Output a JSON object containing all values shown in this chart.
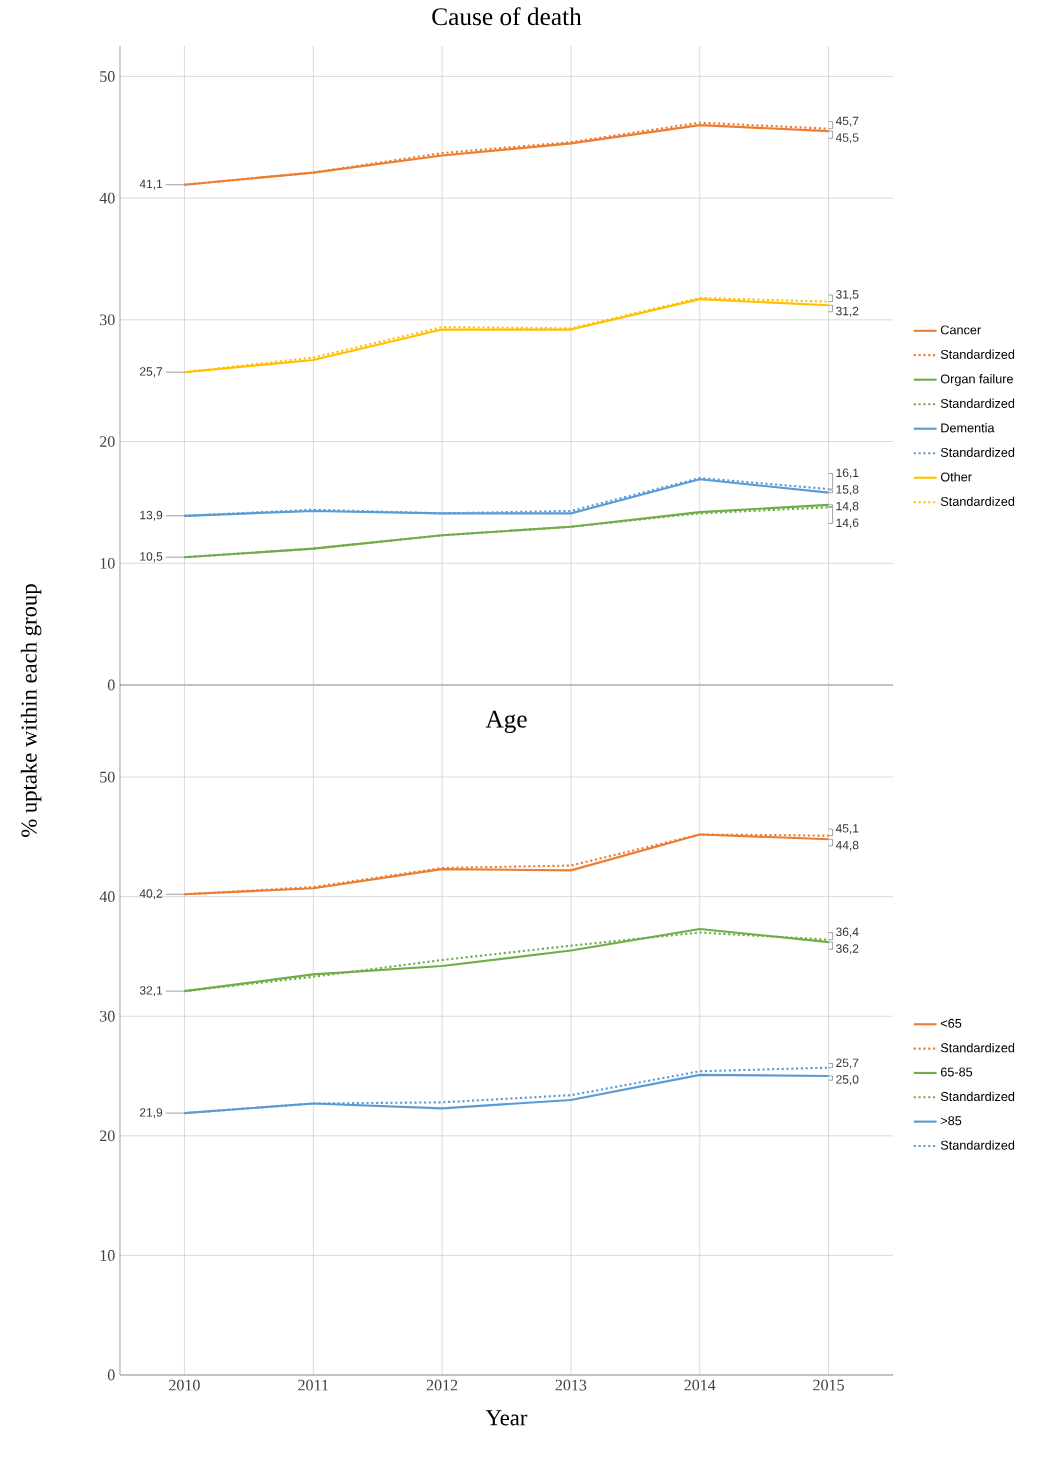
{
  "chart_data": [
    {
      "type": "line",
      "title": "Cause of death",
      "ylabel": "% uptake within each group",
      "x": [
        2010,
        2011,
        2012,
        2013,
        2014,
        2015
      ],
      "xlim": [
        2009.5,
        2015.5
      ],
      "xticks": [
        2010,
        2011,
        2012,
        2013,
        2014,
        2015
      ],
      "ylim": [
        0,
        52.5
      ],
      "yticks": [
        0,
        10,
        20,
        30,
        40,
        50
      ],
      "grid": true,
      "legend": "right",
      "tick_labels": "y",
      "series": [
        {
          "name": "Cancer",
          "color": "#ed7d31",
          "line_style": "solid",
          "values": [
            41.1,
            42.1,
            43.5,
            44.5,
            46.0,
            45.5
          ],
          "value_labels": [
            "41,1",
            null,
            null,
            null,
            null,
            "45,5"
          ]
        },
        {
          "name": "Standardized",
          "color": "#ed7d31",
          "line_style": "dotted",
          "values": [
            41.1,
            42.1,
            43.7,
            44.6,
            46.2,
            45.7
          ],
          "value_labels": [
            null,
            null,
            null,
            null,
            null,
            "45,7"
          ]
        },
        {
          "name": "Organ failure",
          "color": "#70ad47",
          "line_style": "solid",
          "values": [
            10.5,
            11.2,
            12.3,
            13.0,
            14.2,
            14.8
          ],
          "value_labels": [
            "10,5",
            null,
            null,
            null,
            null,
            "14,8"
          ]
        },
        {
          "name": "Standardized",
          "color": "#70ad47",
          "line_style": "dotted",
          "values": [
            10.5,
            11.2,
            12.3,
            13.0,
            14.1,
            14.6
          ],
          "value_labels": [
            null,
            null,
            null,
            null,
            null,
            "14,6"
          ]
        },
        {
          "name": "Dementia",
          "color": "#5b9bd5",
          "line_style": "solid",
          "values": [
            13.9,
            14.3,
            14.1,
            14.1,
            16.9,
            15.8
          ],
          "value_labels": [
            "13,9",
            null,
            null,
            null,
            null,
            "15,8"
          ]
        },
        {
          "name": "Standardized",
          "color": "#5b9bd5",
          "line_style": "dotted",
          "values": [
            13.9,
            14.4,
            14.1,
            14.3,
            17.0,
            16.1
          ],
          "value_labels": [
            null,
            null,
            null,
            null,
            null,
            "16,1"
          ]
        },
        {
          "name": "Other",
          "color": "#ffc000",
          "line_style": "solid",
          "values": [
            25.7,
            26.7,
            29.2,
            29.2,
            31.7,
            31.2
          ],
          "value_labels": [
            "25,7",
            null,
            null,
            null,
            null,
            "31,2"
          ]
        },
        {
          "name": "Standardized",
          "color": "#ffc000",
          "line_style": "dotted",
          "values": [
            25.7,
            26.9,
            29.4,
            29.3,
            31.8,
            31.5
          ],
          "value_labels": [
            null,
            null,
            null,
            null,
            null,
            "31,5"
          ]
        }
      ]
    },
    {
      "type": "line",
      "title": "Age",
      "xlabel": "Year",
      "x": [
        2010,
        2011,
        2012,
        2013,
        2014,
        2015
      ],
      "xlim": [
        2009.5,
        2015.5
      ],
      "xticks": [
        2010,
        2011,
        2012,
        2013,
        2014,
        2015
      ],
      "ylim": [
        0,
        57.7
      ],
      "yticks": [
        0,
        10,
        20,
        30,
        40,
        50
      ],
      "grid": true,
      "legend": "right",
      "series": [
        {
          "name": "<65",
          "color": "#ed7d31",
          "line_style": "solid",
          "values": [
            40.2,
            40.7,
            42.3,
            42.2,
            45.2,
            44.8
          ],
          "value_labels": [
            "40,2",
            null,
            null,
            null,
            null,
            "44,8"
          ]
        },
        {
          "name": "Standardized",
          "color": "#ed7d31",
          "line_style": "dotted",
          "values": [
            40.2,
            40.8,
            42.4,
            42.6,
            45.2,
            45.1
          ],
          "value_labels": [
            null,
            null,
            null,
            null,
            null,
            "45,1"
          ]
        },
        {
          "name": "65-85",
          "color": "#70ad47",
          "line_style": "solid",
          "values": [
            32.1,
            33.5,
            34.2,
            35.5,
            37.3,
            36.2
          ],
          "value_labels": [
            "32,1",
            null,
            null,
            null,
            null,
            "36,2"
          ]
        },
        {
          "name": "Standardized",
          "color": "#70ad47",
          "line_style": "dotted",
          "values": [
            32.1,
            33.3,
            34.7,
            35.9,
            37.0,
            36.4
          ],
          "value_labels": [
            null,
            null,
            null,
            null,
            null,
            "36,4"
          ]
        },
        {
          "name": ">85",
          "color": "#5b9bd5",
          "line_style": "solid",
          "values": [
            21.9,
            22.7,
            22.3,
            23.0,
            25.1,
            25.0
          ],
          "value_labels": [
            "21,9",
            null,
            null,
            null,
            null,
            "25,0"
          ]
        },
        {
          "name": "Standardized",
          "color": "#5b9bd5",
          "line_style": "dotted",
          "values": [
            21.9,
            22.7,
            22.8,
            23.4,
            25.4,
            25.7
          ],
          "value_labels": [
            null,
            null,
            null,
            null,
            null,
            "25,7"
          ]
        }
      ]
    }
  ]
}
